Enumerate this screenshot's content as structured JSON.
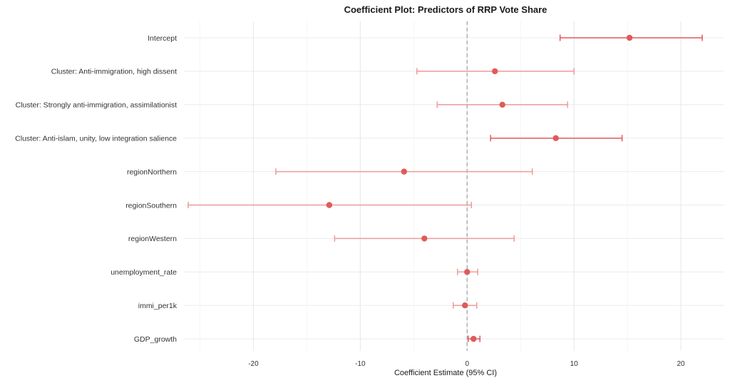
{
  "chart_data": {
    "type": "scatter",
    "title": "Coefficient Plot: Predictors of RRP Vote Share",
    "xlabel": "Coefficient Estimate (95% CI)",
    "ylabel": "",
    "xlim": [
      -26.5,
      24
    ],
    "xticks": [
      -20,
      -10,
      0,
      10,
      20
    ],
    "xtick_labels": [
      "-20",
      "-10",
      "0",
      "10",
      "20"
    ],
    "grid": true,
    "reference_line": 0,
    "colors": {
      "point": "#e05a5a",
      "ci_significant": "#e05a5a",
      "ci_nonsignificant": "#ef9a9a",
      "grid": "#ebebeb",
      "refline": "#9e9e9e"
    },
    "terms": [
      {
        "label": "Intercept",
        "estimate": 15.2,
        "ci_low": 8.7,
        "ci_high": 22.0,
        "significant": true
      },
      {
        "label": "Cluster: Anti-immigration, high dissent",
        "estimate": 2.6,
        "ci_low": -4.7,
        "ci_high": 10.0,
        "significant": false
      },
      {
        "label": "Cluster: Strongly anti-immigration, assimilationist",
        "estimate": 3.3,
        "ci_low": -2.8,
        "ci_high": 9.4,
        "significant": false
      },
      {
        "label": "Cluster: Anti-islam, unity, low integration salience",
        "estimate": 8.3,
        "ci_low": 2.2,
        "ci_high": 14.5,
        "significant": true
      },
      {
        "label": "regionNorthern",
        "estimate": -5.9,
        "ci_low": -17.9,
        "ci_high": 6.1,
        "significant": false
      },
      {
        "label": "regionSouthern",
        "estimate": -12.9,
        "ci_low": -26.1,
        "ci_high": 0.4,
        "significant": false
      },
      {
        "label": "regionWestern",
        "estimate": -4.0,
        "ci_low": -12.4,
        "ci_high": 4.4,
        "significant": false
      },
      {
        "label": "unemployment_rate",
        "estimate": 0.0,
        "ci_low": -0.9,
        "ci_high": 1.0,
        "significant": false
      },
      {
        "label": "immi_per1k",
        "estimate": -0.2,
        "ci_low": -1.3,
        "ci_high": 0.9,
        "significant": false
      },
      {
        "label": "GDP_growth",
        "estimate": 0.6,
        "ci_low": 0.1,
        "ci_high": 1.2,
        "significant": true
      }
    ]
  }
}
